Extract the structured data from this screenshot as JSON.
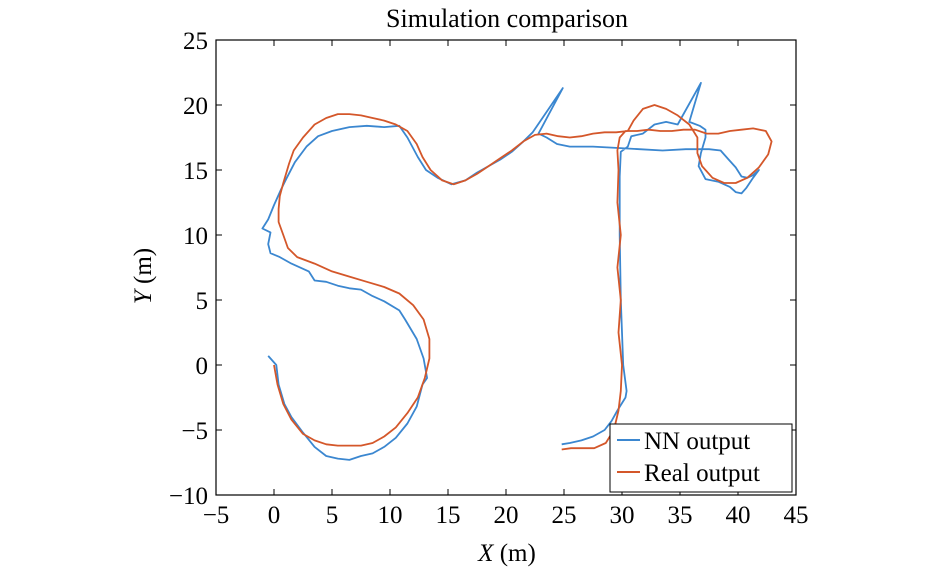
{
  "chart_data": {
    "type": "line",
    "title": "Simulation comparison",
    "xlabel_var": "X",
    "xlabel_unit": " (m)",
    "ylabel_var": "Y",
    "ylabel_unit": " (m)",
    "xlim": [
      -5,
      45
    ],
    "ylim": [
      -10,
      25
    ],
    "xticks": [
      -5,
      0,
      5,
      10,
      15,
      20,
      25,
      30,
      35,
      40,
      45
    ],
    "yticks": [
      -10,
      -5,
      0,
      5,
      10,
      15,
      20,
      25
    ],
    "xtick_labels": [
      "−5",
      "0",
      "5",
      "10",
      "15",
      "20",
      "25",
      "30",
      "35",
      "40",
      "45"
    ],
    "ytick_labels": [
      "−10",
      "−5",
      "0",
      "5",
      "10",
      "15",
      "20",
      "25"
    ],
    "grid": false,
    "legend_position": "bottom-right",
    "series": [
      {
        "name": "NN output",
        "color": "#3b87d0",
        "points": [
          [
            -0.5,
            0.7
          ],
          [
            0.2,
            0
          ],
          [
            0.4,
            -1.5
          ],
          [
            0.9,
            -3
          ],
          [
            1.5,
            -4
          ],
          [
            2.5,
            -5.2
          ],
          [
            3.5,
            -6.3
          ],
          [
            4.5,
            -7
          ],
          [
            5.5,
            -7.2
          ],
          [
            6.5,
            -7.3
          ],
          [
            7.5,
            -7
          ],
          [
            8.5,
            -6.8
          ],
          [
            9.5,
            -6.3
          ],
          [
            10.5,
            -5.6
          ],
          [
            11.5,
            -4.5
          ],
          [
            12.3,
            -3.2
          ],
          [
            12.8,
            -1.5
          ],
          [
            13.2,
            -1
          ],
          [
            12.9,
            0.5
          ],
          [
            12.3,
            2
          ],
          [
            11.3,
            3.5
          ],
          [
            10.8,
            4.2
          ],
          [
            9.5,
            4.9
          ],
          [
            8.5,
            5.3
          ],
          [
            7.5,
            5.8
          ],
          [
            6.5,
            5.9
          ],
          [
            5.5,
            6.1
          ],
          [
            4.5,
            6.4
          ],
          [
            3.5,
            6.5
          ],
          [
            3,
            7.2
          ],
          [
            2.5,
            7.4
          ],
          [
            1.5,
            7.8
          ],
          [
            0.5,
            8.3
          ],
          [
            -0.3,
            8.6
          ],
          [
            -0.5,
            9.3
          ],
          [
            -0.3,
            10.2
          ],
          [
            -1,
            10.5
          ],
          [
            -0.5,
            11.2
          ],
          [
            0,
            12.3
          ],
          [
            0.6,
            13.5
          ],
          [
            1.1,
            14.4
          ],
          [
            1.8,
            15.6
          ],
          [
            2.8,
            16.8
          ],
          [
            3.8,
            17.6
          ],
          [
            5,
            18
          ],
          [
            6.5,
            18.3
          ],
          [
            8,
            18.4
          ],
          [
            9.5,
            18.3
          ],
          [
            10.8,
            18.4
          ],
          [
            11.5,
            17.5
          ],
          [
            12.4,
            16
          ],
          [
            13.1,
            15
          ],
          [
            14.1,
            14.4
          ],
          [
            15.3,
            13.9
          ],
          [
            16.5,
            14.2
          ],
          [
            17.5,
            14.8
          ],
          [
            18.5,
            15.3
          ],
          [
            19.5,
            15.8
          ],
          [
            20.5,
            16.4
          ],
          [
            21.5,
            17.2
          ],
          [
            22.3,
            17.9
          ],
          [
            24.9,
            21.3
          ],
          [
            22.8,
            17.8
          ],
          [
            23.5,
            17.5
          ],
          [
            24.4,
            17
          ],
          [
            25.5,
            16.8
          ],
          [
            27.5,
            16.8
          ],
          [
            29.5,
            16.7
          ],
          [
            31.5,
            16.6
          ],
          [
            33.5,
            16.5
          ],
          [
            35.5,
            16.6
          ],
          [
            37.5,
            16.6
          ],
          [
            38.5,
            16.5
          ],
          [
            39.2,
            15.8
          ],
          [
            39.8,
            15.2
          ],
          [
            40.3,
            14.5
          ],
          [
            40.8,
            14.4
          ],
          [
            41.3,
            14.6
          ],
          [
            41.8,
            15
          ],
          [
            41.3,
            14.4
          ],
          [
            40.7,
            13.6
          ],
          [
            40.3,
            13.2
          ],
          [
            39.8,
            13.3
          ],
          [
            39.3,
            13.7
          ],
          [
            38.3,
            14.1
          ],
          [
            37.2,
            14.3
          ],
          [
            36.6,
            15.3
          ],
          [
            36.8,
            16.3
          ],
          [
            37.2,
            17.5
          ],
          [
            37.2,
            18.1
          ],
          [
            36.7,
            18.4
          ],
          [
            35.8,
            18.7
          ],
          [
            36.8,
            21.7
          ],
          [
            34.8,
            18.5
          ],
          [
            33.8,
            18.7
          ],
          [
            32.8,
            18.5
          ],
          [
            31.8,
            17.8
          ],
          [
            30.8,
            17.6
          ],
          [
            30.5,
            16.8
          ],
          [
            29.9,
            16.4
          ],
          [
            29.8,
            14.5
          ],
          [
            29.8,
            10
          ],
          [
            29.9,
            5
          ],
          [
            30.1,
            0
          ],
          [
            30.4,
            -2
          ],
          [
            30.3,
            -2.5
          ],
          [
            29.6,
            -3.5
          ],
          [
            29.1,
            -4.3
          ],
          [
            28.5,
            -5
          ],
          [
            27.5,
            -5.5
          ],
          [
            26.5,
            -5.8
          ],
          [
            25.5,
            -6
          ],
          [
            24.8,
            -6.1
          ]
        ]
      },
      {
        "name": "Real output",
        "color": "#d4572a",
        "points": [
          [
            0,
            0
          ],
          [
            0.3,
            -1.5
          ],
          [
            0.8,
            -3
          ],
          [
            1.5,
            -4.2
          ],
          [
            2.5,
            -5.3
          ],
          [
            3.5,
            -5.8
          ],
          [
            4.5,
            -6.1
          ],
          [
            5.5,
            -6.2
          ],
          [
            6.5,
            -6.2
          ],
          [
            7.5,
            -6.2
          ],
          [
            8.5,
            -6
          ],
          [
            9.5,
            -5.5
          ],
          [
            10.5,
            -4.8
          ],
          [
            11.5,
            -3.7
          ],
          [
            12.4,
            -2.5
          ],
          [
            13,
            -1
          ],
          [
            13.4,
            0.5
          ],
          [
            13.4,
            2
          ],
          [
            12.9,
            3.5
          ],
          [
            12,
            4.6
          ],
          [
            10.8,
            5.5
          ],
          [
            9.5,
            6
          ],
          [
            8,
            6.4
          ],
          [
            6.5,
            6.8
          ],
          [
            5,
            7.2
          ],
          [
            3.5,
            7.8
          ],
          [
            2,
            8.3
          ],
          [
            1.2,
            9
          ],
          [
            0.8,
            10
          ],
          [
            0.4,
            11
          ],
          [
            0.4,
            12
          ],
          [
            0.5,
            13
          ],
          [
            0.8,
            14
          ],
          [
            1.3,
            15.5
          ],
          [
            1.7,
            16.5
          ],
          [
            2.5,
            17.5
          ],
          [
            3.5,
            18.5
          ],
          [
            4.5,
            19
          ],
          [
            5.5,
            19.3
          ],
          [
            6.5,
            19.3
          ],
          [
            7.5,
            19.2
          ],
          [
            8.5,
            19
          ],
          [
            9.5,
            18.8
          ],
          [
            10.5,
            18.5
          ],
          [
            11.5,
            18
          ],
          [
            12.3,
            17
          ],
          [
            12.8,
            16
          ],
          [
            13.5,
            15
          ],
          [
            14.5,
            14.2
          ],
          [
            15.5,
            13.9
          ],
          [
            16.5,
            14.2
          ],
          [
            17.5,
            14.7
          ],
          [
            18.5,
            15.3
          ],
          [
            19.5,
            15.9
          ],
          [
            20.5,
            16.5
          ],
          [
            21.5,
            17.2
          ],
          [
            22.5,
            17.7
          ],
          [
            23.5,
            17.8
          ],
          [
            24.5,
            17.6
          ],
          [
            25.5,
            17.5
          ],
          [
            26.5,
            17.6
          ],
          [
            27.5,
            17.8
          ],
          [
            28.5,
            17.9
          ],
          [
            29.5,
            17.9
          ],
          [
            30.5,
            18
          ],
          [
            31,
            18.8
          ],
          [
            31.8,
            19.7
          ],
          [
            32.8,
            20
          ],
          [
            33.8,
            19.7
          ],
          [
            34.8,
            19.2
          ],
          [
            35.8,
            18.5
          ],
          [
            36.5,
            17.5
          ],
          [
            36.5,
            16.3
          ],
          [
            36.9,
            15.3
          ],
          [
            37.8,
            14.4
          ],
          [
            38.8,
            14
          ],
          [
            39.8,
            14
          ],
          [
            40.8,
            14.4
          ],
          [
            41.8,
            15.2
          ],
          [
            42.6,
            16.2
          ],
          [
            42.9,
            17.2
          ],
          [
            42.4,
            18
          ],
          [
            41.3,
            18.2
          ],
          [
            40.3,
            18.1
          ],
          [
            39.3,
            18
          ],
          [
            38.3,
            17.8
          ],
          [
            37.3,
            17.8
          ],
          [
            36.3,
            18.1
          ],
          [
            35.3,
            18.1
          ],
          [
            34.3,
            18
          ],
          [
            33.3,
            18
          ],
          [
            32.3,
            18.1
          ],
          [
            31.3,
            18
          ],
          [
            30.3,
            18
          ],
          [
            29.8,
            17.5
          ],
          [
            29.6,
            16.5
          ],
          [
            29.7,
            15
          ],
          [
            29.6,
            12.5
          ],
          [
            29.9,
            10
          ],
          [
            29.6,
            7.5
          ],
          [
            29.9,
            5
          ],
          [
            29.7,
            2.5
          ],
          [
            30,
            0
          ],
          [
            29.9,
            -2
          ],
          [
            29.7,
            -3.5
          ],
          [
            29.3,
            -5
          ],
          [
            28.6,
            -6
          ],
          [
            27.6,
            -6.4
          ],
          [
            26.6,
            -6.4
          ],
          [
            25.6,
            -6.4
          ],
          [
            24.8,
            -6.5
          ]
        ]
      }
    ]
  }
}
